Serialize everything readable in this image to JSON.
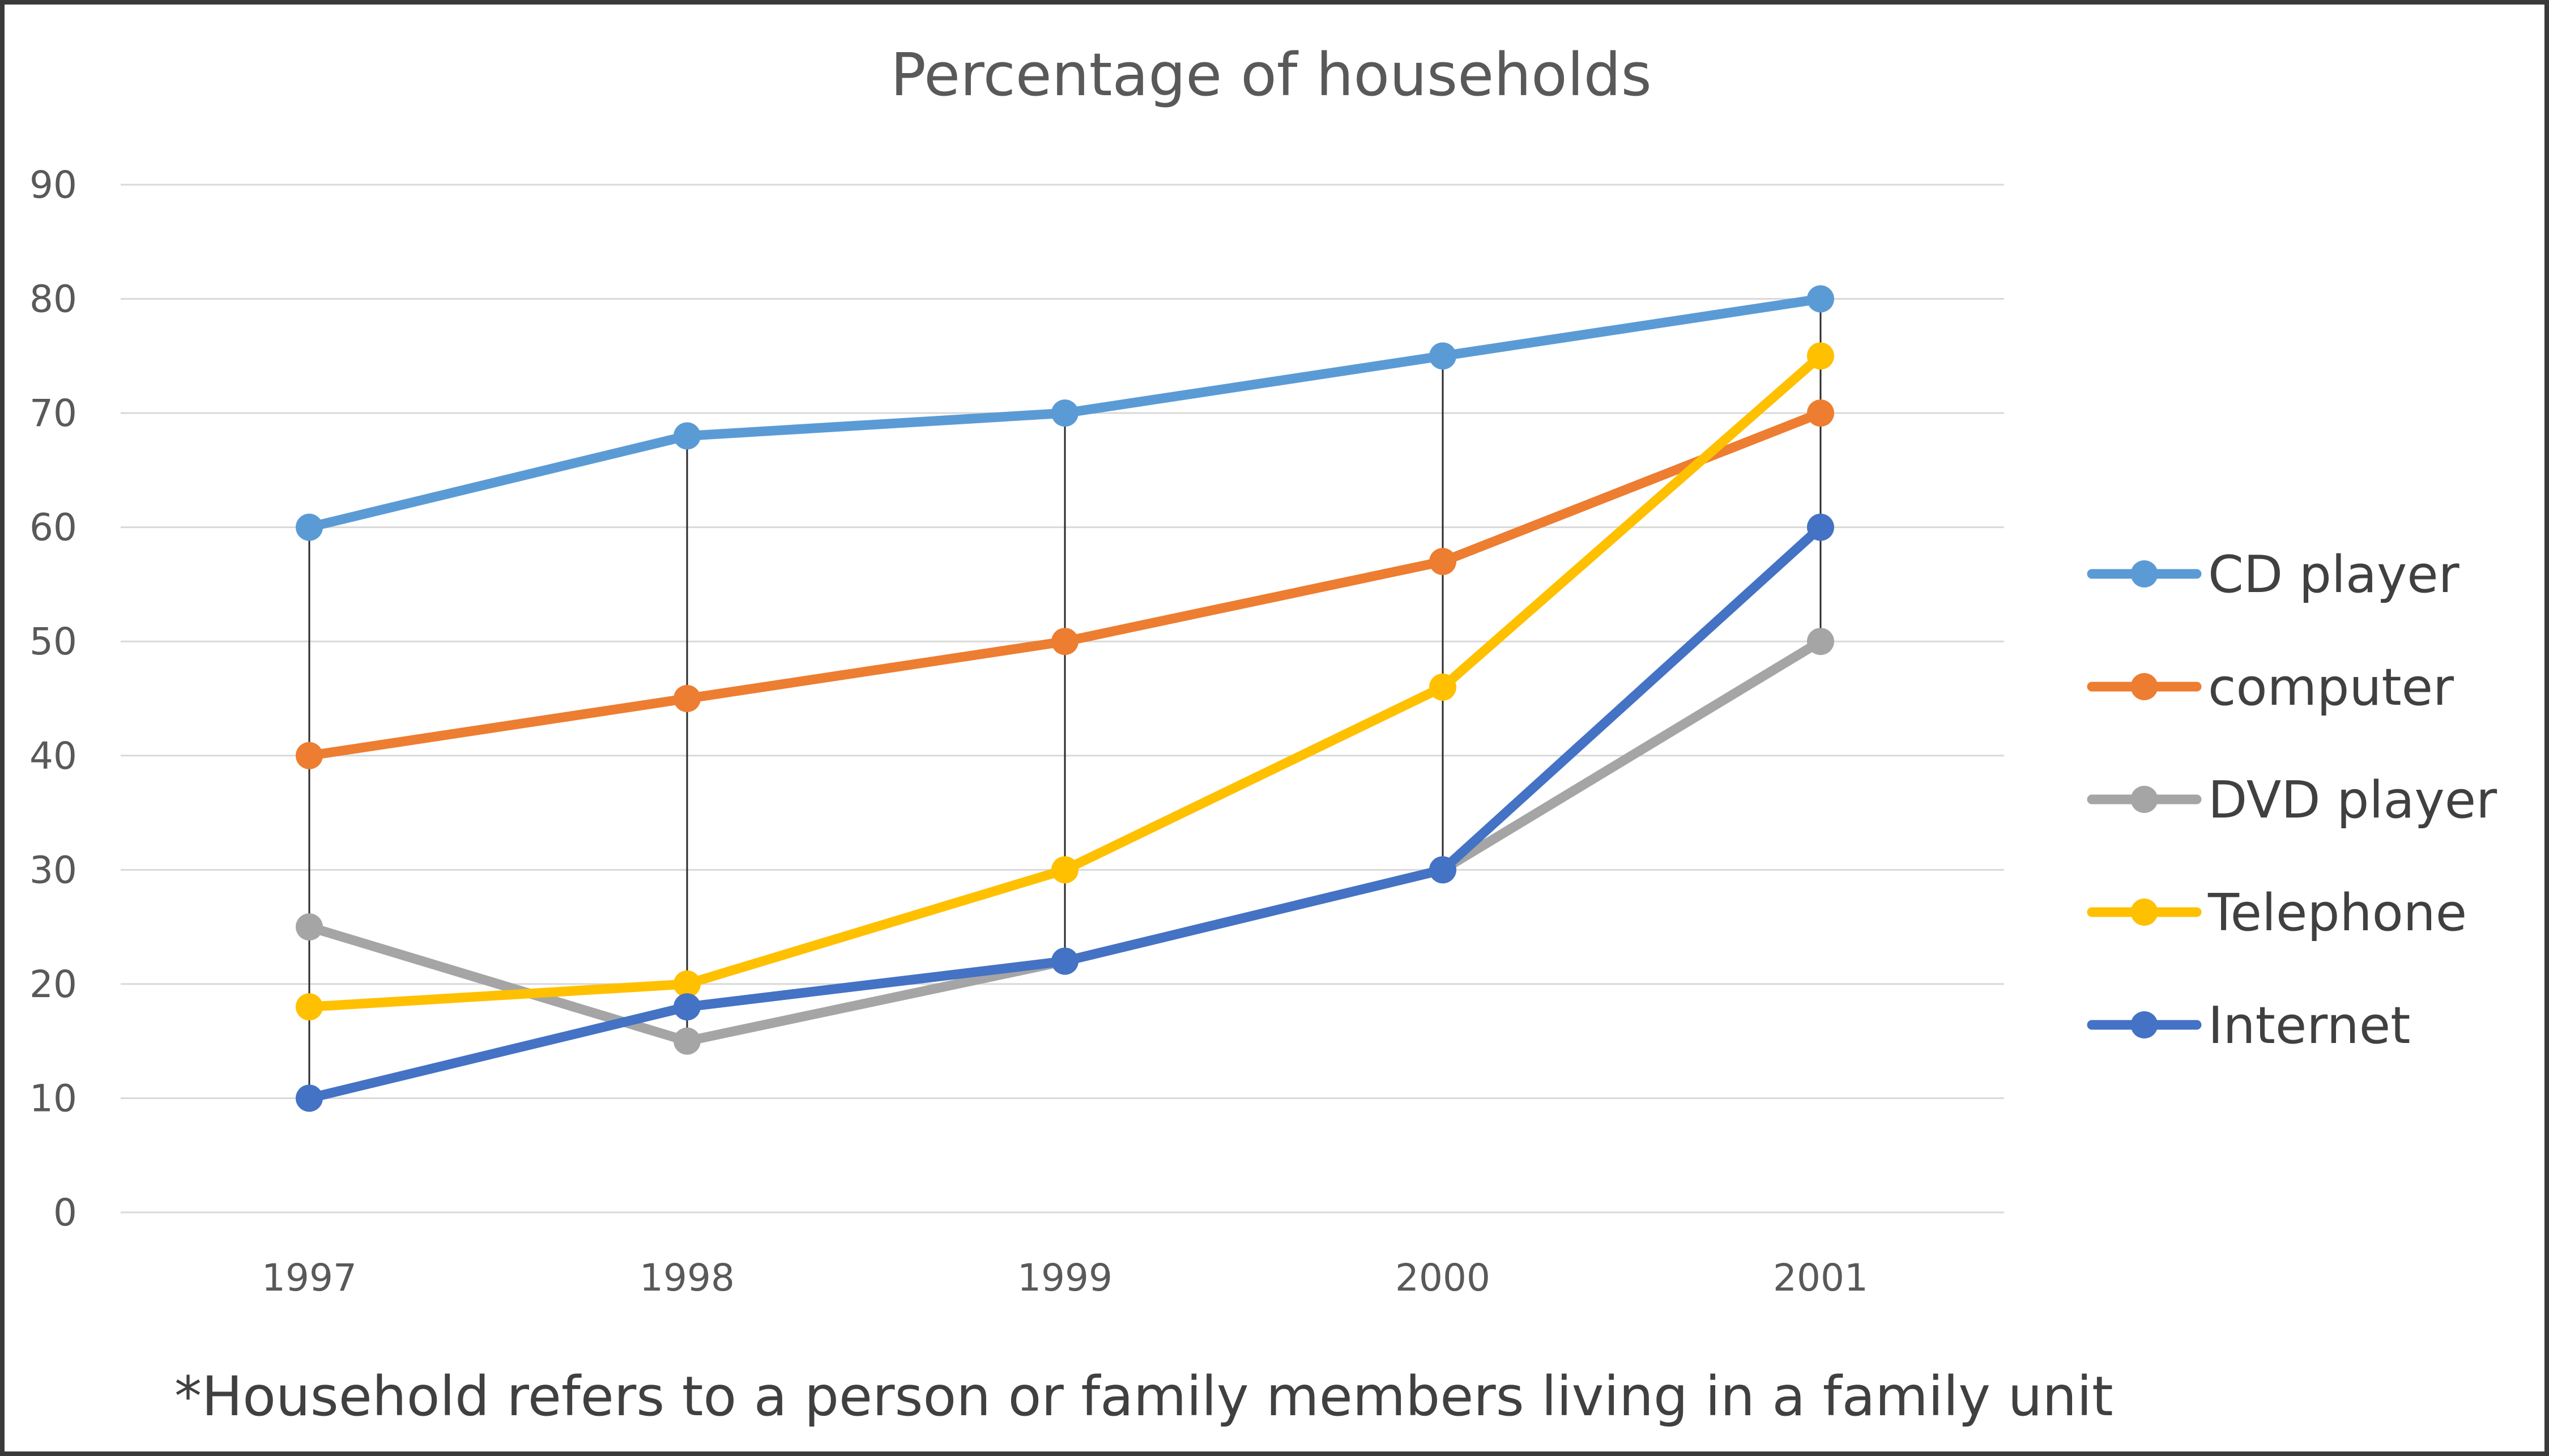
{
  "chart_data": {
    "type": "line",
    "title": "Percentage of households",
    "categories": [
      "1997",
      "1998",
      "1999",
      "2000",
      "2001"
    ],
    "ylim": [
      0,
      90
    ],
    "yticks": [
      0,
      10,
      20,
      30,
      40,
      50,
      60,
      70,
      80,
      90
    ],
    "grid": true,
    "drop_lines": true,
    "legend_position": "right",
    "series": [
      {
        "name": "CD player",
        "color": "#5B9BD5",
        "values": [
          60,
          68,
          70,
          75,
          80
        ]
      },
      {
        "name": "computer",
        "color": "#ED7D31",
        "values": [
          40,
          45,
          50,
          57,
          70
        ]
      },
      {
        "name": "DVD player",
        "color": "#A5A5A5",
        "values": [
          25,
          15,
          22,
          30,
          50
        ]
      },
      {
        "name": "Telephone",
        "color": "#FFC000",
        "values": [
          18,
          20,
          30,
          46,
          75
        ]
      },
      {
        "name": "Internet",
        "color": "#4472C4",
        "values": [
          10,
          18,
          22,
          30,
          60
        ]
      }
    ],
    "footnote": "*Household refers to a person or family members living in a family unit"
  }
}
